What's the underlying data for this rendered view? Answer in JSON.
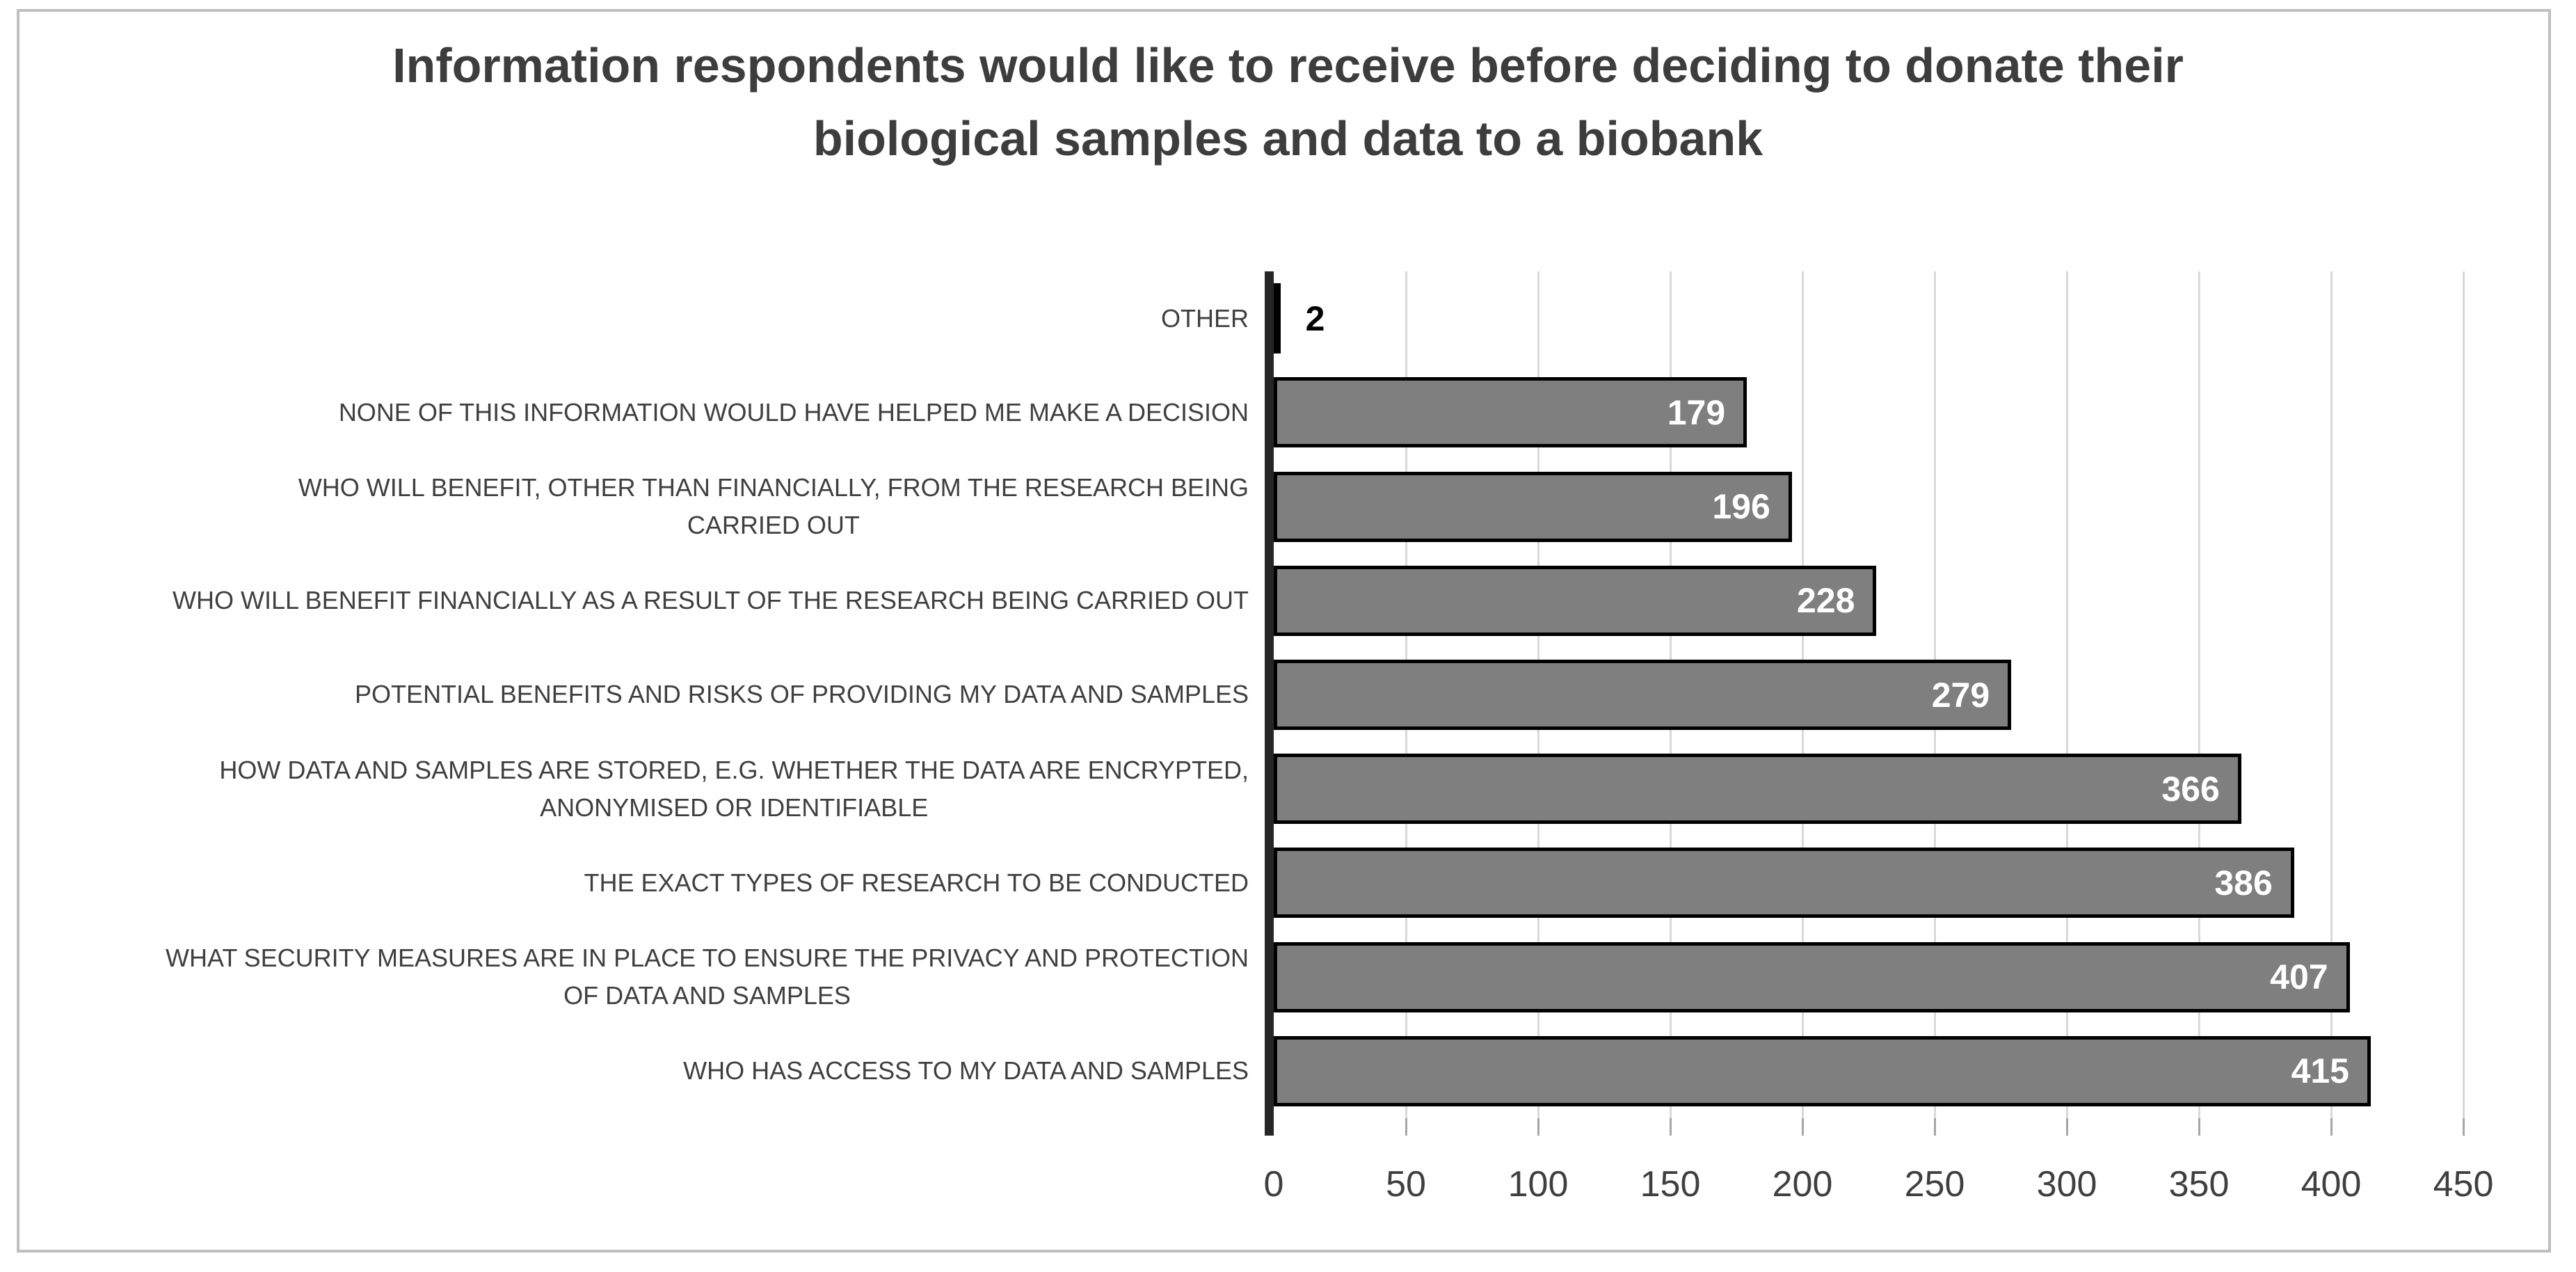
{
  "header": {
    "title_line1": "Information respondents would like to receive before deciding to donate their",
    "title_line2": "biological samples and data to a biobank"
  },
  "chart_data": {
    "type": "bar",
    "orientation": "horizontal",
    "title": "Information respondents would like to receive before deciding to donate their biological samples and data to a biobank",
    "categories": [
      "OTHER",
      "NONE OF THIS INFORMATION WOULD HAVE HELPED ME MAKE A DECISION",
      "WHO WILL BENEFIT, OTHER THAN FINANCIALLY, FROM THE RESEARCH BEING\nCARRIED OUT",
      "WHO WILL BENEFIT FINANCIALLY AS A RESULT OF THE RESEARCH BEING CARRIED OUT",
      "POTENTIAL BENEFITS AND RISKS OF PROVIDING MY DATA AND SAMPLES",
      "HOW DATA AND SAMPLES ARE STORED, E.G. WHETHER THE DATA ARE ENCRYPTED,\nANONYMISED OR IDENTIFIABLE",
      "THE EXACT TYPES OF RESEARCH TO BE CONDUCTED",
      "WHAT SECURITY MEASURES ARE IN PLACE TO ENSURE THE PRIVACY AND PROTECTION\nOF DATA AND SAMPLES",
      "WHO HAS ACCESS TO MY DATA AND SAMPLES"
    ],
    "values": [
      2,
      179,
      196,
      228,
      279,
      366,
      386,
      407,
      415
    ],
    "x_ticks": [
      0,
      50,
      100,
      150,
      200,
      250,
      300,
      350,
      400,
      450
    ],
    "xlim": [
      0,
      450
    ],
    "xlabel": "",
    "ylabel": "",
    "legend": "none",
    "grid": "vertical",
    "bar_color": "#7f7f7f",
    "bar_border_color": "#000000",
    "gridline_color": "#d9d9d9",
    "axis_line_color": "#262626",
    "value_label_color_inside": "#ffffff",
    "value_label_color_outside": "#000000",
    "text_color": "#3f3f3f"
  }
}
